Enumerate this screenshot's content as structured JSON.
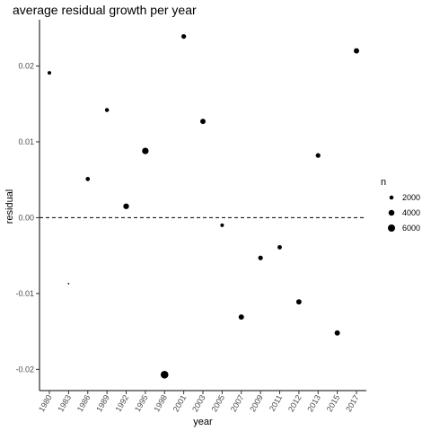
{
  "chart_data": {
    "type": "scatter",
    "title": "average residual growth per year",
    "xlabel": "year",
    "ylabel": "residual",
    "categories": [
      "1980",
      "1983",
      "1986",
      "1989",
      "1992",
      "1995",
      "1998",
      "2001",
      "2003",
      "2005",
      "2007",
      "2009",
      "2011",
      "2012",
      "2013",
      "2015",
      "2017"
    ],
    "points": [
      {
        "x": "1980",
        "y": 0.0191,
        "n": 1500
      },
      {
        "x": "1983",
        "y": -0.0087,
        "n": 300
      },
      {
        "x": "1986",
        "y": 0.0051,
        "n": 2100
      },
      {
        "x": "1989",
        "y": 0.0142,
        "n": 1900
      },
      {
        "x": "1992",
        "y": 0.0015,
        "n": 3800
      },
      {
        "x": "1995",
        "y": 0.0088,
        "n": 5000
      },
      {
        "x": "1998",
        "y": -0.0207,
        "n": 7000
      },
      {
        "x": "2001",
        "y": 0.0239,
        "n": 2600
      },
      {
        "x": "2003",
        "y": 0.0127,
        "n": 3300
      },
      {
        "x": "2005",
        "y": -0.001,
        "n": 1500
      },
      {
        "x": "2007",
        "y": -0.0131,
        "n": 3300
      },
      {
        "x": "2009",
        "y": -0.0053,
        "n": 2600
      },
      {
        "x": "2011",
        "y": -0.0039,
        "n": 2200
      },
      {
        "x": "2012",
        "y": -0.0111,
        "n": 3300
      },
      {
        "x": "2013",
        "y": 0.0082,
        "n": 2600
      },
      {
        "x": "2015",
        "y": -0.0152,
        "n": 3300
      },
      {
        "x": "2017",
        "y": 0.022,
        "n": 3300
      }
    ],
    "ylim": [
      -0.0228,
      0.0261
    ],
    "yticks": [
      -0.02,
      -0.01,
      0.0,
      0.01,
      0.02
    ],
    "ytick_labels": [
      "-0.02",
      "-0.01",
      "0.00",
      "0.01",
      "0.02"
    ],
    "reference_line": {
      "y": 0,
      "style": "dashed"
    },
    "legend": {
      "title": "n",
      "position": "right",
      "entries": [
        {
          "label": "2000",
          "n": 2000
        },
        {
          "label": "4000",
          "n": 4000
        },
        {
          "label": "6000",
          "n": 6000
        }
      ]
    },
    "grid": false
  }
}
